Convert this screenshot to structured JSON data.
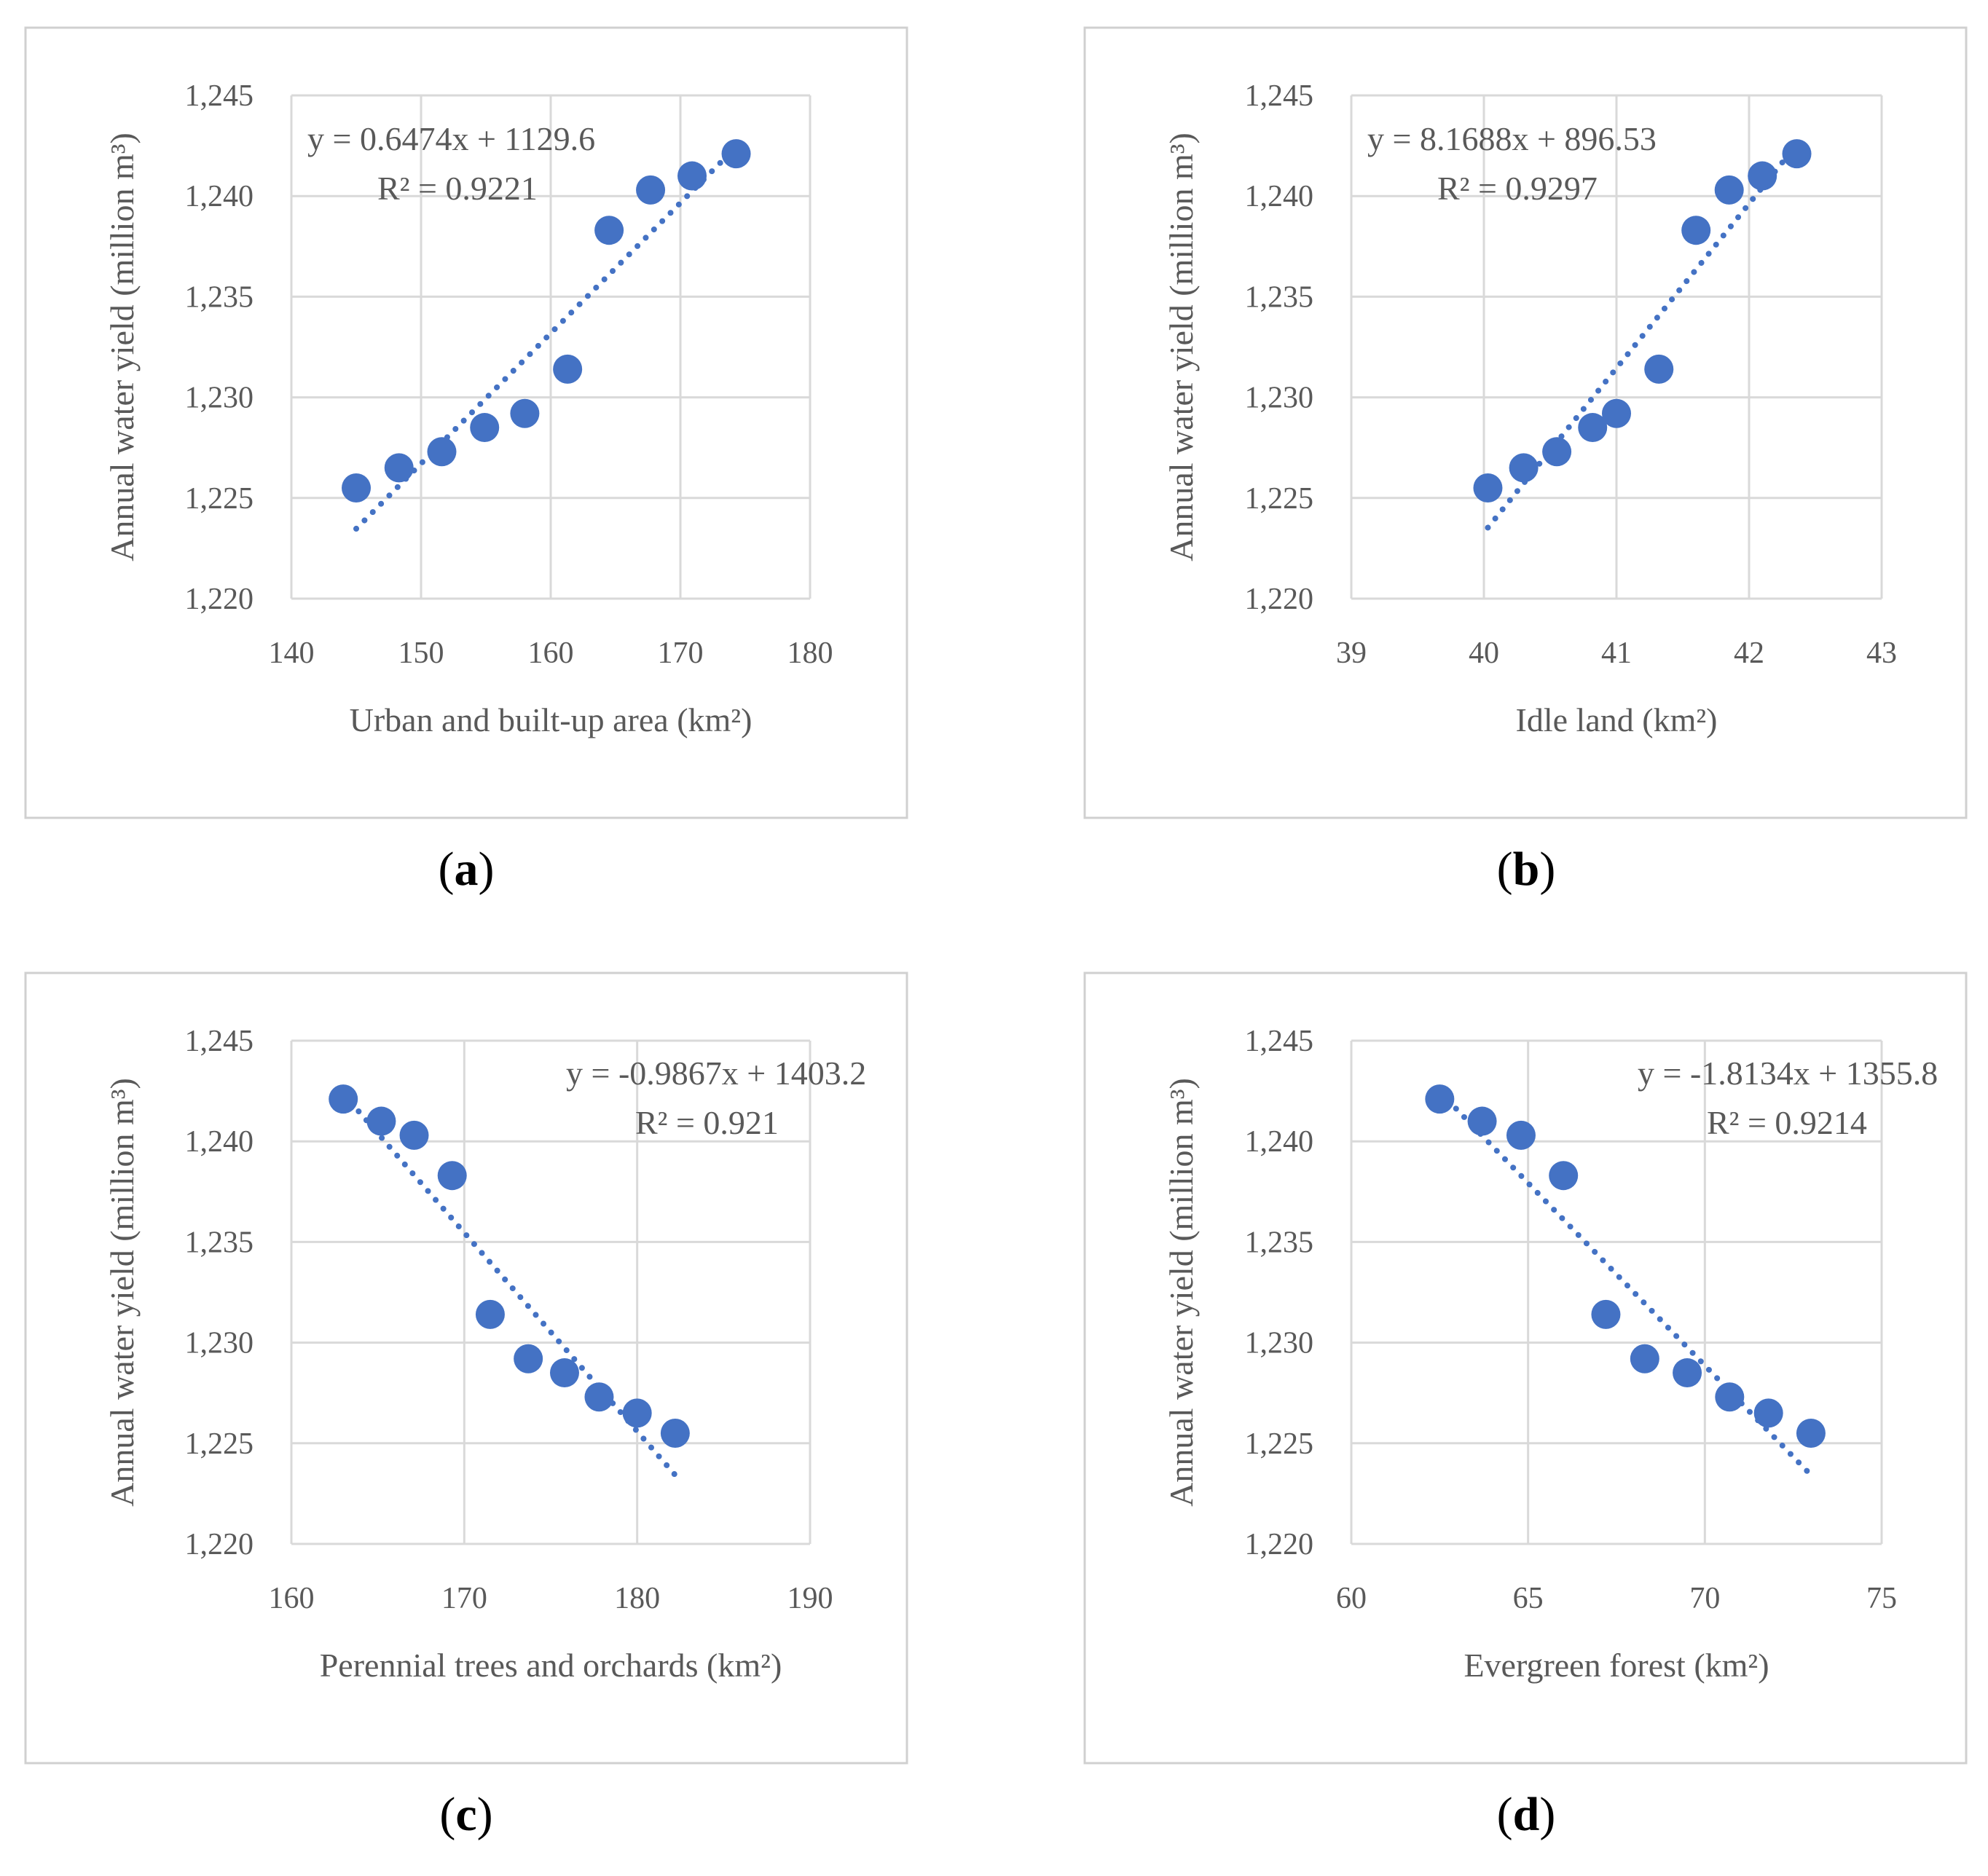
{
  "figure": {
    "marker_color": "#4472c4",
    "trend_color": "#4472c4",
    "y_axis_label": "Annual water yield (million m³)",
    "y_ticks": [
      "1,220",
      "1,225",
      "1,230",
      "1,235",
      "1,240",
      "1,245"
    ]
  },
  "chart_data": [
    {
      "type": "scatter",
      "caption_letter": "a",
      "xlabel": "Urban and built-up area (km²)",
      "ylabel": "Annual water yield (million m³)",
      "xlim": [
        140,
        180
      ],
      "ylim": [
        1220,
        1245
      ],
      "xticks": [
        140,
        150,
        160,
        170,
        180
      ],
      "yticks": [
        1220,
        1225,
        1230,
        1235,
        1240,
        1245
      ],
      "x": [
        145.0,
        148.3,
        151.6,
        154.9,
        158.0,
        161.3,
        164.5,
        167.7,
        170.9,
        174.3
      ],
      "y": [
        1225.5,
        1226.5,
        1227.3,
        1228.5,
        1229.2,
        1231.4,
        1238.3,
        1240.3,
        1241.0,
        1242.1
      ],
      "trendline": {
        "slope": 0.6474,
        "intercept": 1129.6,
        "x_range": [
          145.0,
          174.3
        ]
      },
      "equation": "y = 0.6474x + 1129.6",
      "r2": "R² = 0.9221",
      "equation_position": "top-left"
    },
    {
      "type": "scatter",
      "caption_letter": "b",
      "xlabel": "Idle land (km²)",
      "ylabel": "Annual water yield (million m³)",
      "xlim": [
        39,
        43
      ],
      "ylim": [
        1220,
        1245
      ],
      "xticks": [
        39,
        40,
        41,
        42,
        43
      ],
      "yticks": [
        1220,
        1225,
        1230,
        1235,
        1240,
        1245
      ],
      "x": [
        40.03,
        40.3,
        40.55,
        40.82,
        41.0,
        41.32,
        41.6,
        41.85,
        42.1,
        42.36
      ],
      "y": [
        1225.5,
        1226.5,
        1227.3,
        1228.5,
        1229.2,
        1231.4,
        1238.3,
        1240.3,
        1241.0,
        1242.1
      ],
      "trendline": {
        "slope": 8.1688,
        "intercept": 896.53,
        "x_range": [
          40.03,
          42.36
        ]
      },
      "equation": "y = 8.1688x + 896.53",
      "r2": "R² = 0.9297",
      "equation_position": "top-left"
    },
    {
      "type": "scatter",
      "caption_letter": "c",
      "xlabel": "Perennial trees and orchards (km²)",
      "ylabel": "Annual water yield (million m³)",
      "xlim": [
        160,
        190
      ],
      "ylim": [
        1220,
        1245
      ],
      "xticks": [
        160,
        170,
        180,
        190
      ],
      "yticks": [
        1220,
        1225,
        1230,
        1235,
        1240,
        1245
      ],
      "x": [
        163.0,
        165.2,
        167.1,
        169.3,
        171.5,
        173.7,
        175.8,
        177.8,
        180.0,
        182.2
      ],
      "y": [
        1242.1,
        1241.0,
        1240.3,
        1238.3,
        1231.4,
        1229.2,
        1228.5,
        1227.3,
        1226.5,
        1225.5
      ],
      "trendline": {
        "slope": -0.9867,
        "intercept": 1403.2,
        "x_range": [
          163.0,
          182.2
        ]
      },
      "equation": "y = -0.9867x + 1403.2",
      "r2": "R² = 0.921",
      "equation_position": "top-right"
    },
    {
      "type": "scatter",
      "caption_letter": "d",
      "xlabel": "Evergreen forest (km²)",
      "ylabel": "Annual water yield (million m³)",
      "xlim": [
        60,
        75
      ],
      "ylim": [
        1220,
        1245
      ],
      "xticks": [
        60,
        65,
        70,
        75
      ],
      "yticks": [
        1220,
        1225,
        1230,
        1235,
        1240,
        1245
      ],
      "x": [
        62.5,
        63.7,
        64.8,
        66.0,
        67.2,
        68.3,
        69.5,
        70.7,
        71.8,
        73.0
      ],
      "y": [
        1242.1,
        1241.0,
        1240.3,
        1238.3,
        1231.4,
        1229.2,
        1228.5,
        1227.3,
        1226.5,
        1225.5
      ],
      "trendline": {
        "slope": -1.8134,
        "intercept": 1355.8,
        "x_range": [
          62.5,
          73.0
        ]
      },
      "equation": "y = -1.8134x + 1355.8",
      "r2": "R² = 0.9214",
      "equation_position": "top-right"
    }
  ]
}
